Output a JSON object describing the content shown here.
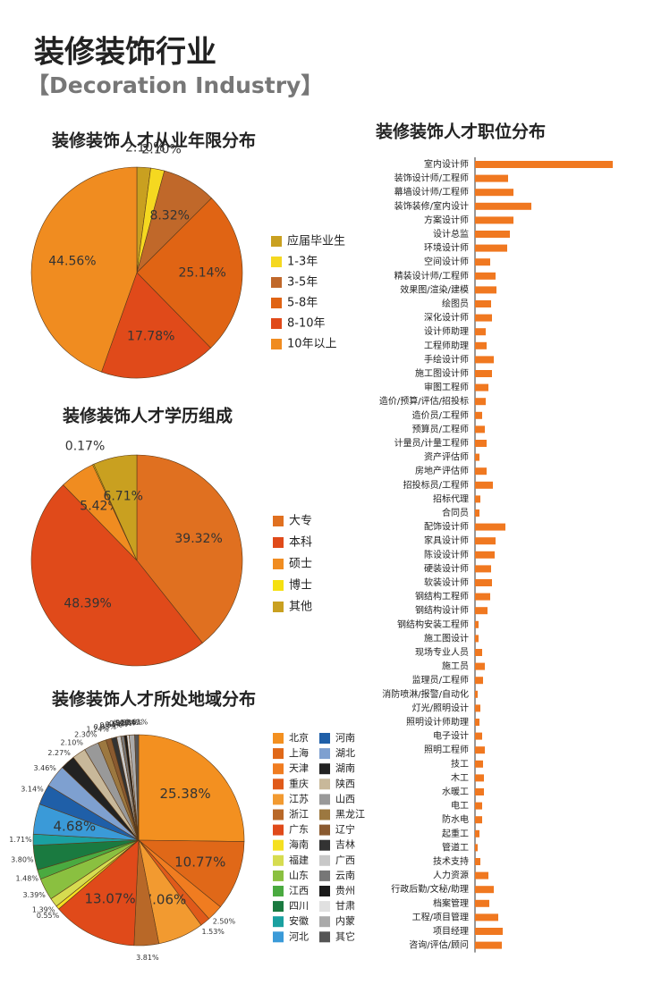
{
  "header": {
    "title": "装修装饰行业",
    "subtitle": "【Decoration Industry】"
  },
  "chart_data": [
    {
      "type": "pie",
      "title": "装修装饰人才从业年限分布",
      "categories": [
        "应届毕业生",
        "1-3年",
        "3-5年",
        "5-8年",
        "8-10年",
        "10年以上"
      ],
      "values": [
        2.1,
        2.1,
        8.32,
        25.14,
        17.78,
        44.56
      ],
      "value_labels": [
        "2.10%",
        "2.10%",
        "8.32%",
        "25.14%",
        "17.78%",
        "44.56%"
      ],
      "colors": [
        "#c9a020",
        "#f5d820",
        "#c0682a",
        "#e06414",
        "#e04a1a",
        "#f08c20"
      ]
    },
    {
      "type": "pie",
      "title": "装修装饰人才学历组成",
      "categories": [
        "大专",
        "本科",
        "硕士",
        "博士",
        "其他"
      ],
      "values": [
        39.32,
        48.39,
        5.42,
        0.17,
        6.71
      ],
      "value_labels": [
        "39.32%",
        "48.39%",
        "5.42%",
        "0.17%",
        "6.71%"
      ],
      "colors": [
        "#e07020",
        "#e04a1a",
        "#f08c20",
        "#f5e010",
        "#c9a020"
      ]
    },
    {
      "type": "pie",
      "title": "装修装饰人才所处地域分布",
      "categories": [
        "北京",
        "上海",
        "天津",
        "重庆",
        "江苏",
        "浙江",
        "广东",
        "海南",
        "福建",
        "山东",
        "江西",
        "四川",
        "安徽",
        "河北",
        "河南",
        "湖北",
        "湖南",
        "陕西",
        "山西",
        "黑龙江",
        "辽宁",
        "吉林",
        "广西",
        "云南",
        "贵州",
        "甘肃",
        "内蒙",
        "其它"
      ],
      "values": [
        25.38,
        10.77,
        2.5,
        1.53,
        7.06,
        3.81,
        13.07,
        0.55,
        1.39,
        3.39,
        1.48,
        3.8,
        1.71,
        4.68,
        3.14,
        3.46,
        2.27,
        2.1,
        2.3,
        1.24,
        0.85,
        0.84,
        0.64,
        0.52,
        0.41,
        0.35,
        0.84,
        0.61
      ],
      "value_labels": [
        "25.38%",
        "10.77%",
        "2.50%",
        "1.53%",
        "7.06%",
        "3.81%",
        "13.07%",
        "0.55%",
        "1.39%",
        "3.39%",
        "1.48%",
        "3.80%",
        "1.71%",
        "4.68%",
        "3.14%",
        "3.46%",
        "2.27%",
        "2.10%",
        "2.30%",
        "1.24%",
        "0.85%",
        "0.84%",
        "0.64%",
        "0.52%",
        "0.41%",
        "0.35%",
        "0.84%",
        "0.61%"
      ],
      "colors": [
        "#f39020",
        "#e06818",
        "#f07c20",
        "#e05a1a",
        "#f29a30",
        "#b86828",
        "#e04a1a",
        "#f5e020",
        "#d6dc50",
        "#8ac040",
        "#4aaa40",
        "#1a7a40",
        "#1aa0a0",
        "#3a9ad8",
        "#1f5fa8",
        "#7ea0d0",
        "#222222",
        "#c8b89a",
        "#999999",
        "#9c7840",
        "#8a5a30",
        "#333333",
        "#c8c8c8",
        "#777777",
        "#1a1a1a",
        "#e0e0e0",
        "#aaaaaa",
        "#555555"
      ]
    },
    {
      "type": "bar",
      "orientation": "horizontal",
      "title": "装修装饰人才职位分布",
      "categories": [
        "室内设计师",
        "装饰设计师/工程师",
        "幕墙设计师/工程师",
        "装饰装修/室内设计",
        "方案设计师",
        "设计总监",
        "环境设计师",
        "空间设计师",
        "精装设计师/工程师",
        "效果图/渲染/建模",
        "绘图员",
        "深化设计师",
        "设计师助理",
        "工程师助理",
        "手绘设计师",
        "施工图设计师",
        "审图工程师",
        "造价/预算/评估/招投标",
        "造价员/工程师",
        "预算员/工程师",
        "计量员/计量工程师",
        "资产评估师",
        "房地产评估师",
        "招投标员/工程师",
        "招标代理",
        "合同员",
        "配饰设计师",
        "家具设计师",
        "陈设设计师",
        "硬装设计师",
        "软装设计师",
        "钢结构工程师",
        "钢结构设计师",
        "钢结构安装工程师",
        "施工图设计",
        "现场专业人员",
        "施工员",
        "监理员/工程师",
        "消防喷淋/报警/自动化",
        "灯光/照明设计",
        "照明设计师助理",
        "电子设计",
        "照明工程师",
        "技工",
        "木工",
        "水暖工",
        "电工",
        "防水电",
        "起重工",
        "管道工",
        "技术支持",
        "人力资源",
        "行政后勤/文秘/助理",
        "档案管理",
        "工程/项目管理",
        "项目经理",
        "咨询/评估/顾问"
      ],
      "values": [
        154,
        37,
        43,
        63,
        43,
        39,
        36,
        17,
        23,
        24,
        18,
        19,
        12,
        13,
        21,
        19,
        15,
        12,
        8,
        11,
        13,
        5,
        13,
        20,
        6,
        5,
        34,
        23,
        22,
        18,
        19,
        17,
        14,
        4,
        4,
        8,
        11,
        9,
        3,
        6,
        5,
        8,
        11,
        9,
        10,
        10,
        8,
        8,
        5,
        3,
        6,
        15,
        21,
        16,
        26,
        31,
        30
      ],
      "color": "#f07820"
    }
  ]
}
